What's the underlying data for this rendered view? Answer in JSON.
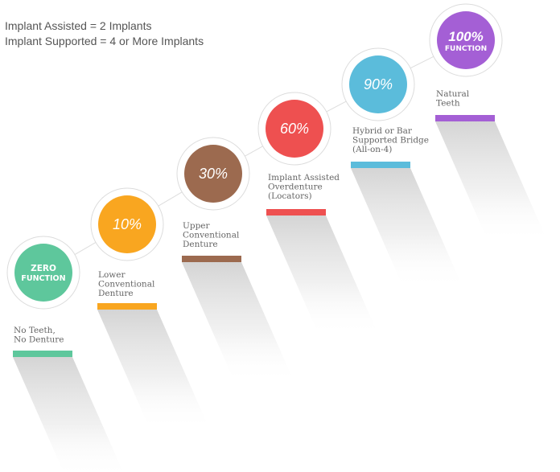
{
  "legend": {
    "line1": "Implant Assisted = 2 Implants",
    "line2": "Implant Supported = 4 or More Implants"
  },
  "steps": [
    {
      "id": "zero",
      "circle_lines": [
        "ZERO",
        "FUNCTION"
      ],
      "circle_style": "word",
      "color": "#5ec79c",
      "label_lines": [
        "No Teeth,",
        "No Denture"
      ]
    },
    {
      "id": "10",
      "circle_lines": [
        "10%"
      ],
      "circle_style": "percent",
      "color": "#f9a620",
      "label_lines": [
        "Lower",
        "Conventional",
        "Denture"
      ]
    },
    {
      "id": "30",
      "circle_lines": [
        "30%"
      ],
      "circle_style": "percent",
      "color": "#9c6a4f",
      "label_lines": [
        "Upper",
        "Conventional",
        "Denture"
      ]
    },
    {
      "id": "60",
      "circle_lines": [
        "60%"
      ],
      "circle_style": "percent",
      "color": "#ee5050",
      "label_lines": [
        "Implant Assisted",
        "Overdenture",
        "(Locators)"
      ]
    },
    {
      "id": "90",
      "circle_lines": [
        "90%"
      ],
      "circle_style": "percent",
      "color": "#5bbcdb",
      "label_lines": [
        "Hybrid or Bar",
        "Supported Bridge",
        "(All-on-4)"
      ]
    },
    {
      "id": "100",
      "circle_lines": [
        "100%",
        "FUNCTION"
      ],
      "circle_style": "mixed",
      "color": "#a45fd5",
      "label_lines": [
        "Natural",
        "Teeth"
      ]
    }
  ],
  "connector_color": "#dddddd"
}
